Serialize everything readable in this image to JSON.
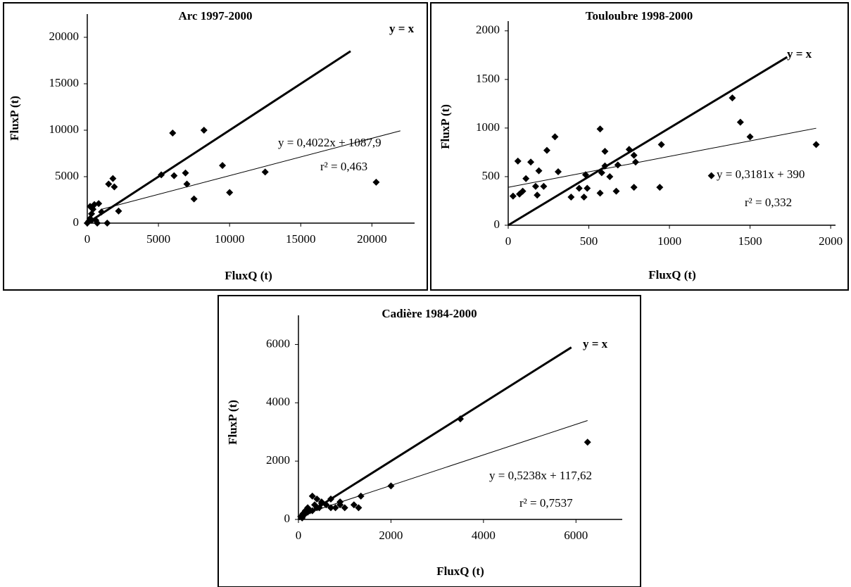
{
  "chart_data": [
    {
      "type": "scatter",
      "title": "Arc 1997-2000",
      "xlabel": "FluxQ (t)",
      "ylabel": "FluxP (t)",
      "xlim": [
        0,
        23000
      ],
      "ylim": [
        0,
        22500
      ],
      "xticks": [
        0,
        5000,
        10000,
        15000,
        20000
      ],
      "yticks": [
        0,
        5000,
        10000,
        15000,
        20000
      ],
      "color": "#000000",
      "series": [
        {
          "x": [
            0,
            100,
            200,
            300,
            400,
            500,
            200,
            600,
            800,
            700,
            1000,
            300,
            1500,
            1800,
            1900,
            1400,
            2200,
            5200,
            6000,
            6100,
            6900,
            7000,
            7500,
            8200,
            9500,
            10000,
            12500,
            20300
          ],
          "values": [
            0,
            200,
            500,
            1000,
            1500,
            2000,
            1800,
            300,
            2100,
            0,
            1200,
            300,
            4200,
            4800,
            3900,
            0,
            1300,
            5200,
            9700,
            5100,
            5400,
            4200,
            2600,
            10000,
            6200,
            3300,
            5500,
            4400
          ]
        }
      ],
      "lines": [
        {
          "label": "y = x",
          "x": [
            0,
            18500
          ],
          "y": [
            0,
            18500
          ],
          "width": 3
        },
        {
          "label": "y = 0,4022x + 1087,9",
          "x": [
            1000,
            22000
          ],
          "y": [
            1490,
            9936
          ],
          "width": 1
        }
      ],
      "annotations": [
        "r² = 0,463"
      ]
    },
    {
      "type": "scatter",
      "title": "Touloubre 1998-2000",
      "xlabel": "FluxQ (t)",
      "ylabel": "FluxP (t)",
      "xlim": [
        0,
        2030
      ],
      "ylim": [
        0,
        2100
      ],
      "xticks": [
        0,
        500,
        1000,
        1500,
        2000
      ],
      "yticks": [
        0,
        500,
        1000,
        1500,
        2000
      ],
      "color": "#000000",
      "series": [
        {
          "x": [
            30,
            70,
            60,
            90,
            110,
            140,
            170,
            180,
            190,
            220,
            240,
            290,
            310,
            390,
            440,
            470,
            480,
            490,
            570,
            570,
            580,
            600,
            600,
            630,
            670,
            680,
            750,
            780,
            780,
            790,
            940,
            950,
            1260,
            1390,
            1440,
            1500,
            1910
          ],
          "values": [
            300,
            320,
            660,
            350,
            480,
            650,
            400,
            310,
            560,
            400,
            770,
            910,
            550,
            290,
            380,
            290,
            520,
            380,
            990,
            330,
            540,
            610,
            760,
            500,
            350,
            620,
            780,
            390,
            720,
            650,
            390,
            830,
            510,
            1310,
            1060,
            910,
            830
          ]
        }
      ],
      "lines": [
        {
          "label": "y = x",
          "x": [
            0,
            1730
          ],
          "y": [
            0,
            1730
          ],
          "width": 3
        },
        {
          "label": "y = 0,3181x + 390",
          "x": [
            0,
            1910
          ],
          "y": [
            390,
            998
          ],
          "width": 1
        }
      ],
      "annotations": [
        "r² = 0,332"
      ]
    },
    {
      "type": "scatter",
      "title": "Cadière 1984-2000",
      "xlabel": "FluxQ (t)",
      "ylabel": "FluxP (t)",
      "xlim": [
        0,
        7000
      ],
      "ylim": [
        0,
        7000
      ],
      "xticks": [
        0,
        2000,
        4000,
        6000
      ],
      "yticks": [
        0,
        2000,
        4000,
        6000
      ],
      "color": "#000000",
      "series": [
        {
          "x": [
            50,
            100,
            150,
            200,
            250,
            300,
            350,
            400,
            450,
            500,
            600,
            700,
            800,
            900,
            1000,
            1200,
            1300,
            1350,
            2000,
            3500,
            6250,
            80,
            120,
            200,
            300,
            400,
            500,
            700,
            900
          ],
          "values": [
            100,
            200,
            300,
            400,
            300,
            800,
            500,
            700,
            400,
            600,
            500,
            700,
            400,
            500,
            400,
            500,
            400,
            800,
            1150,
            3450,
            2650,
            50,
            150,
            250,
            300,
            400,
            550,
            400,
            600
          ]
        }
      ],
      "lines": [
        {
          "label": "y = x",
          "x": [
            0,
            5900
          ],
          "y": [
            0,
            5900
          ],
          "width": 3
        },
        {
          "label": "y = 0,5238x + 117,62",
          "x": [
            0,
            6250
          ],
          "y": [
            118,
            3391
          ],
          "width": 1
        }
      ],
      "annotations": [
        "r² = 0,7537"
      ]
    }
  ]
}
